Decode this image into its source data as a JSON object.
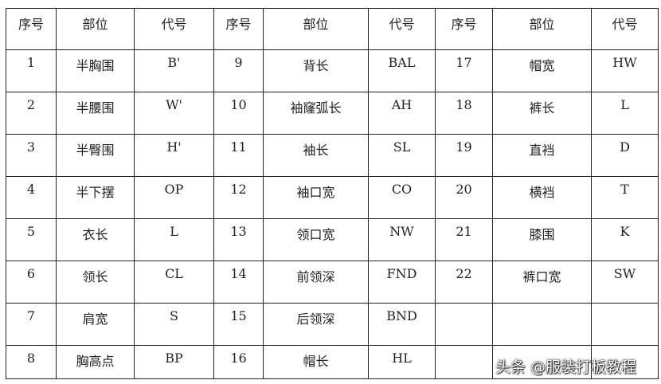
{
  "headers": [
    "序号",
    "部位",
    "代号",
    "序号",
    "部位",
    "代号",
    "序号",
    "部位",
    "代号"
  ],
  "rows": [
    [
      "1",
      "半胸围",
      "B'",
      "9",
      "背长",
      "BAL",
      "17",
      "帽宽",
      "HW"
    ],
    [
      "2",
      "半腰围",
      "W'",
      "10",
      "袖窿弧长",
      "AH",
      "18",
      "裤长",
      "L"
    ],
    [
      "3",
      "半臀围",
      "H'",
      "11",
      "袖长",
      "SL",
      "19",
      "直裆",
      "D"
    ],
    [
      "4",
      "半下摆",
      "OP",
      "12",
      "袖口宽",
      "CO",
      "20",
      "横裆",
      "T"
    ],
    [
      "5",
      "衣长",
      "L",
      "13",
      "领口宽",
      "NW",
      "21",
      "膝围",
      "K"
    ],
    [
      "6",
      "领长",
      "CL",
      "14",
      "前领深",
      "FND",
      "22",
      "裤口宽",
      "SW"
    ],
    [
      "7",
      "肩宽",
      "S",
      "15",
      "后领深",
      "BND",
      "",
      "",
      ""
    ],
    [
      "8",
      "胸高点",
      "BP",
      "16",
      "帽长",
      "HL",
      "",
      "",
      ""
    ]
  ],
  "watermark": "头条 @服装打板教程"
}
